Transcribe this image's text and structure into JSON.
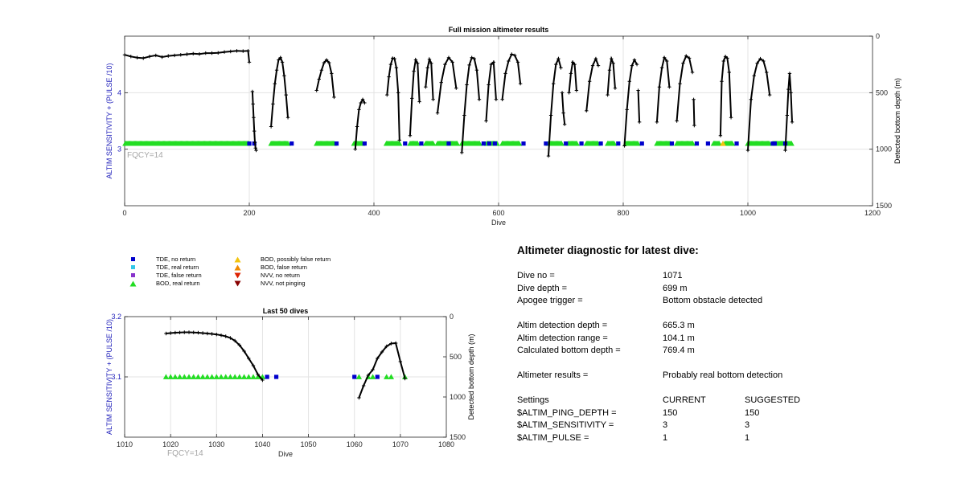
{
  "chart_data": [
    {
      "type": "scatter",
      "title": "Full mission altimeter results",
      "xlabel": "Dive",
      "ylabel_left": "ALTIM SENSITIVITY + (PULSE /10)",
      "ylabel_right": "Detected bottom depth (m)",
      "xlim": [
        0,
        1200
      ],
      "ylim_left": [
        2,
        5
      ],
      "ylim_right_reversed": [
        0,
        1500
      ],
      "xticks": [
        0,
        200,
        400,
        600,
        800,
        1000,
        1200
      ],
      "yticks_left": [
        3,
        4
      ],
      "yticks_right": [
        0,
        500,
        1000,
        1500
      ],
      "grid": true,
      "annotation": "FQCY=14",
      "sensitivity_value": 3.1,
      "bod_real_return_ranges": [
        [
          1,
          199
        ],
        [
          235,
          262
        ],
        [
          308,
          337
        ],
        [
          368,
          382
        ],
        [
          420,
          441
        ],
        [
          458,
          470
        ],
        [
          483,
          496
        ],
        [
          502,
          534
        ],
        [
          541,
          570
        ],
        [
          581,
          598
        ],
        [
          606,
          634
        ],
        [
          680,
          702
        ],
        [
          712,
          726
        ],
        [
          741,
          760
        ],
        [
          775,
          786
        ],
        [
          804,
          824
        ],
        [
          854,
          875
        ],
        [
          886,
          912
        ],
        [
          945,
          955
        ],
        [
          963,
          975
        ],
        [
          1000,
          1035
        ],
        [
          1040,
          1060
        ],
        [
          1061,
          1071
        ]
      ],
      "tde_no_return_dives": [
        200,
        208,
        268,
        340,
        385,
        450,
        476,
        520,
        576,
        585,
        594,
        640,
        676,
        708,
        733,
        764,
        792,
        830,
        878,
        918,
        936,
        982,
        1040,
        1043,
        1060
      ],
      "bod_possibly_false_dives": [
        960
      ],
      "bottom_depth_series": [
        {
          "x": [
            0,
            10,
            20,
            30,
            40,
            50,
            60,
            70,
            80,
            90,
            100,
            110,
            120,
            130,
            140,
            150,
            160,
            170,
            180,
            190,
            198,
            200
          ],
          "y": [
            165,
            180,
            190,
            195,
            180,
            170,
            185,
            175,
            170,
            165,
            160,
            155,
            158,
            150,
            150,
            148,
            140,
            135,
            130,
            132,
            130,
            230
          ]
        },
        {
          "x": [
            205,
            206,
            207,
            208,
            209,
            210,
            211
          ],
          "y": [
            490,
            600,
            720,
            840,
            940,
            990,
            1010
          ]
        },
        {
          "x": [
            235,
            238,
            241,
            244,
            247,
            250,
            253,
            256,
            259,
            262
          ],
          "y": [
            800,
            600,
            420,
            300,
            210,
            190,
            230,
            350,
            520,
            720
          ]
        },
        {
          "x": [
            308,
            312,
            316,
            320,
            324,
            328,
            332,
            336
          ],
          "y": [
            480,
            380,
            300,
            235,
            210,
            235,
            330,
            540
          ]
        },
        {
          "x": [
            370,
            373,
            376,
            379,
            382,
            385
          ],
          "y": [
            1000,
            800,
            650,
            590,
            560,
            590
          ]
        },
        {
          "x": [
            421,
            424,
            427,
            430,
            433,
            436,
            439,
            441
          ],
          "y": [
            520,
            360,
            250,
            195,
            200,
            280,
            500,
            920
          ]
        },
        {
          "x": [
            458,
            461,
            464,
            467,
            470,
            473
          ],
          "y": [
            880,
            550,
            310,
            210,
            240,
            580
          ]
        },
        {
          "x": [
            483,
            486,
            489,
            492,
            495
          ],
          "y": [
            450,
            280,
            205,
            240,
            560
          ]
        },
        {
          "x": [
            502,
            508,
            514,
            520,
            526,
            532
          ],
          "y": [
            680,
            410,
            250,
            190,
            230,
            460
          ]
        },
        {
          "x": [
            541,
            545,
            549,
            553,
            557,
            561,
            565,
            569
          ],
          "y": [
            1030,
            700,
            430,
            255,
            190,
            200,
            300,
            560
          ]
        },
        {
          "x": [
            580,
            584,
            588,
            592,
            596
          ],
          "y": [
            750,
            430,
            250,
            230,
            560
          ]
        },
        {
          "x": [
            606,
            611,
            616,
            621,
            626,
            631,
            635
          ],
          "y": [
            560,
            330,
            220,
            160,
            170,
            230,
            420
          ]
        },
        {
          "x": [
            680,
            684,
            688,
            692,
            696,
            700
          ],
          "y": [
            1060,
            700,
            420,
            250,
            200,
            280
          ]
        },
        {
          "x": [
            702,
            704,
            706
          ],
          "y": [
            500,
            680,
            780
          ]
        },
        {
          "x": [
            713,
            716,
            719,
            722,
            725
          ],
          "y": [
            500,
            330,
            230,
            250,
            480
          ]
        },
        {
          "x": [
            741,
            746,
            751,
            756,
            760
          ],
          "y": [
            660,
            400,
            260,
            200,
            260
          ]
        },
        {
          "x": [
            775,
            778,
            781,
            784,
            787
          ],
          "y": [
            520,
            300,
            200,
            240,
            460
          ]
        },
        {
          "x": [
            802,
            806,
            810,
            814,
            818,
            822
          ],
          "y": [
            970,
            650,
            400,
            260,
            210,
            250
          ]
        },
        {
          "x": [
            824,
            826
          ],
          "y": [
            480,
            760
          ]
        },
        {
          "x": [
            854,
            858,
            862,
            866,
            870,
            874
          ],
          "y": [
            760,
            450,
            280,
            190,
            220,
            450
          ]
        },
        {
          "x": [
            886,
            891,
            896,
            901,
            906,
            911
          ],
          "y": [
            750,
            420,
            240,
            175,
            195,
            320
          ]
        },
        {
          "x": [
            913,
            914
          ],
          "y": [
            560,
            790
          ]
        },
        {
          "x": [
            956,
            958,
            961,
            964,
            967,
            970,
            973
          ],
          "y": [
            880,
            400,
            220,
            180,
            195,
            320,
            720
          ]
        },
        {
          "x": [
            1000,
            1005,
            1010,
            1015,
            1020,
            1025,
            1030,
            1035
          ],
          "y": [
            1010,
            560,
            350,
            240,
            200,
            220,
            320,
            520
          ]
        },
        {
          "x": [
            1060,
            1063,
            1065,
            1067,
            1069,
            1071
          ],
          "y": [
            1010,
            700,
            470,
            330,
            500,
            760
          ]
        }
      ]
    },
    {
      "type": "scatter",
      "title": "Last 50 dives",
      "xlabel": "Dive",
      "ylabel_left": "ALTIM SENSITIVITY + (PULSE /10)",
      "ylabel_right": "Detected bottom depth (m)",
      "xlim": [
        1010,
        1080
      ],
      "ylim_left": [
        3,
        3.2
      ],
      "ylim_right_reversed": [
        0,
        1500
      ],
      "xticks": [
        1010,
        1020,
        1030,
        1040,
        1050,
        1060,
        1070,
        1080
      ],
      "yticks_left": [
        3.1,
        3.2
      ],
      "yticks_right": [
        0,
        500,
        1000,
        1500
      ],
      "grid": true,
      "annotation": "FQCY=14",
      "sensitivity_value": 3.1,
      "bod_real_return_dives": [
        1019,
        1020,
        1021,
        1022,
        1023,
        1024,
        1025,
        1026,
        1027,
        1028,
        1029,
        1030,
        1031,
        1032,
        1033,
        1034,
        1035,
        1036,
        1037,
        1038,
        1039,
        1040,
        1061,
        1063,
        1064,
        1067,
        1068,
        1071
      ],
      "tde_no_return_dives": [
        1041,
        1043,
        1060,
        1065
      ],
      "bottom_depth_series": [
        {
          "x": [
            1019,
            1020,
            1021,
            1022,
            1023,
            1024,
            1025,
            1026,
            1027,
            1028,
            1029,
            1030,
            1031,
            1032,
            1033,
            1034,
            1035,
            1036,
            1037,
            1038,
            1039,
            1040
          ],
          "y": [
            210,
            205,
            200,
            198,
            195,
            195,
            197,
            200,
            205,
            210,
            215,
            222,
            232,
            245,
            265,
            300,
            355,
            430,
            520,
            610,
            720,
            790
          ]
        },
        {
          "x": [
            1061,
            1062,
            1063,
            1064,
            1065,
            1066,
            1067,
            1068,
            1069,
            1070,
            1071
          ],
          "y": [
            1010,
            860,
            730,
            660,
            520,
            440,
            370,
            335,
            330,
            560,
            770
          ]
        }
      ]
    }
  ],
  "legend": [
    {
      "label": "TDE, no return",
      "color": "#0000cc",
      "shape": "square"
    },
    {
      "label": "TDE, real return",
      "color": "#33c8e8",
      "shape": "square"
    },
    {
      "label": "TDE, false return",
      "color": "#8833cc",
      "shape": "square"
    },
    {
      "label": "BOD, real return",
      "color": "#22dd22",
      "shape": "triangle-up"
    },
    {
      "label": "BOD, possibly false return",
      "color": "#f2c40f",
      "shape": "triangle-up"
    },
    {
      "label": "BOD, false return",
      "color": "#f08a00",
      "shape": "triangle-up"
    },
    {
      "label": "NVV, no return",
      "color": "#dd2200",
      "shape": "triangle-down"
    },
    {
      "label": "NVV, not pinging",
      "color": "#880000",
      "shape": "triangle-down"
    }
  ],
  "diagnostic": {
    "title": "Altimeter diagnostic for latest dive:",
    "dive_no_label": "Dive no =",
    "dive_no_value": "1071",
    "dive_depth_label": "Dive depth =",
    "dive_depth_value": "699 m",
    "apogee_label": "Apogee trigger =",
    "apogee_value": "Bottom obstacle detected",
    "altim_depth_label": "Altim detection depth =",
    "altim_depth_value": "665.3 m",
    "altim_range_label": "Altim detection range =",
    "altim_range_value": "104.1 m",
    "calc_depth_label": "Calculated bottom depth =",
    "calc_depth_value": "769.4 m",
    "results_label": "Altimeter results =",
    "results_value": "Probably real bottom detection",
    "settings_label": "Settings",
    "current_label": "CURRENT",
    "suggested_label": "SUGGESTED",
    "settings": [
      {
        "name": "$ALTIM_PING_DEPTH =",
        "current": "150",
        "suggested": "150"
      },
      {
        "name": "$ALTIM_SENSITIVITY =",
        "current": "3",
        "suggested": "3"
      },
      {
        "name": "$ALTIM_PULSE =",
        "current": "1",
        "suggested": "1"
      }
    ]
  }
}
